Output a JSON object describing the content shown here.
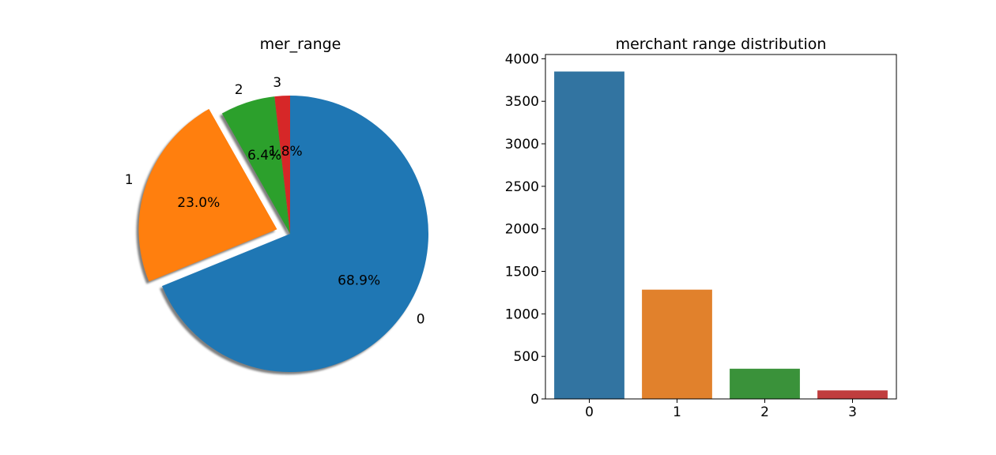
{
  "chart_data": [
    {
      "type": "pie",
      "title": "mer_range",
      "labels": [
        "0",
        "1",
        "2",
        "3"
      ],
      "values": [
        68.9,
        23.0,
        6.4,
        1.8
      ],
      "autopct": [
        "68.9%",
        "23.0%",
        "6.4%",
        "1.8%"
      ],
      "explode": [
        0,
        0.1,
        0,
        0
      ],
      "shadow": true,
      "start_angle_deg": 90,
      "direction": "clockwise",
      "colors": [
        "#1f77b4",
        "#ff7f0e",
        "#2ca02c",
        "#d62728"
      ]
    },
    {
      "type": "bar",
      "title": "merchant range distribution",
      "categories": [
        "0",
        "1",
        "2",
        "3"
      ],
      "values": [
        3850,
        1285,
        355,
        100
      ],
      "xlabel": "",
      "ylabel": "",
      "ylim": [
        0,
        4050
      ],
      "yticks": [
        0,
        500,
        1000,
        1500,
        2000,
        2500,
        3000,
        3500,
        4000
      ],
      "grid": false,
      "colors": [
        "#3274a1",
        "#e1812c",
        "#3a923a",
        "#c03d3e"
      ]
    }
  ]
}
